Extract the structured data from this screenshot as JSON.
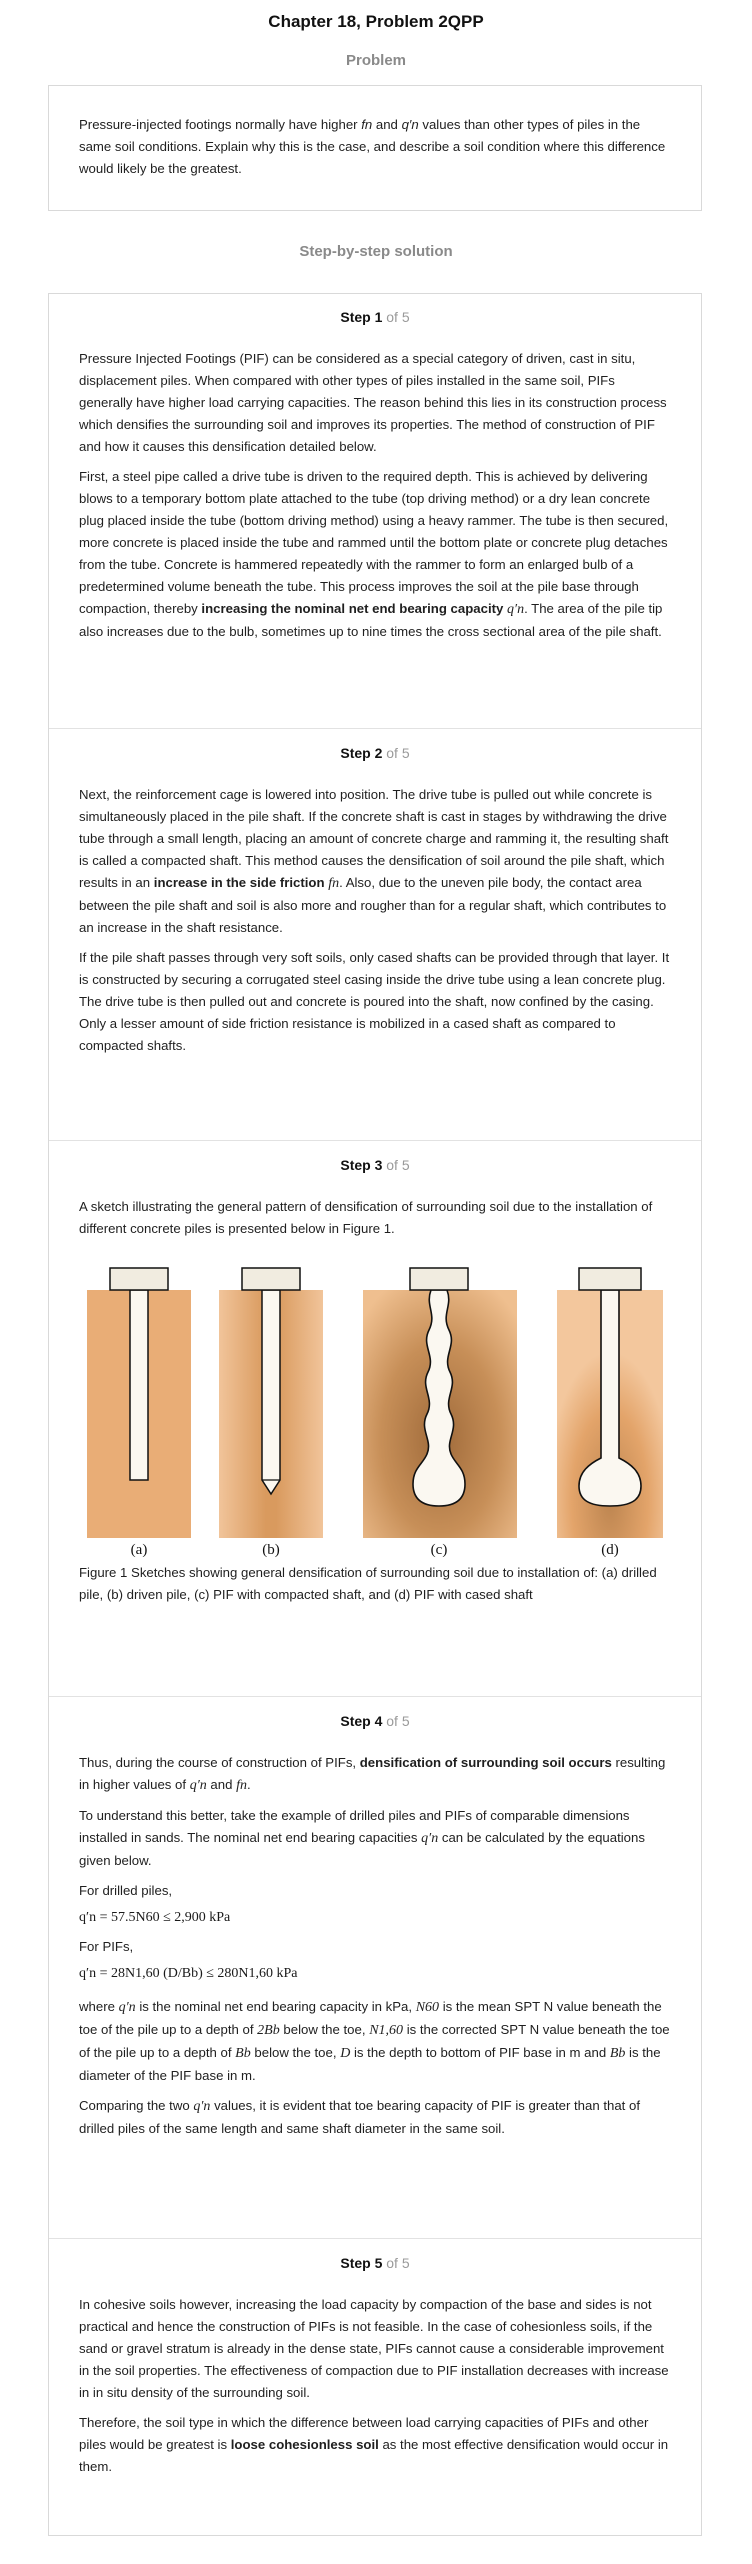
{
  "header": {
    "title": "Chapter 18, Problem 2QPP"
  },
  "problem": {
    "heading": "Problem",
    "text_before_fn": "Pressure-injected footings normally have higher ",
    "fn": "fn",
    "text_and": " and ",
    "qn": "q′n",
    "text_after_qn": " values than other types of piles in the same soil conditions. Explain why this is the case, and describe a soil condition where this difference would likely be the greatest."
  },
  "solution": {
    "heading": "Step-by-step solution"
  },
  "steps": [
    {
      "label": "Step 1",
      "of": " of 5",
      "p1": "Pressure Injected Footings (PIF) can be considered as a special category of driven, cast in situ, displacement piles. When compared with other types of piles installed in the same soil, PIFs generally have higher load carrying capacities. The reason behind this lies in its construction process which densifies the surrounding soil and improves its properties. The method of construction of PIF and how it causes this densification detailed below.",
      "p2_a": "First, a steel pipe called a drive tube is driven to the required depth. This is achieved by delivering blows to a temporary bottom plate attached to the tube (top driving method) or a dry lean concrete plug placed inside the tube (bottom driving method) using a heavy rammer. The tube is then secured, more concrete is placed inside the tube and rammed until the bottom plate or concrete plug detaches from the tube. Concrete is hammered repeatedly with the rammer to form an enlarged bulb of a predetermined volume beneath the tube. This process improves the soil at the pile base through compaction, thereby ",
      "p2_bold": "increasing the nominal net end bearing capacity",
      "p2_sym": "q′n",
      "p2_b": ". The area of the pile tip also increases due to the bulb, sometimes up to nine times the cross sectional area of the pile shaft."
    },
    {
      "label": "Step 2",
      "of": " of 5",
      "p1_a": "Next, the reinforcement cage is lowered into position. The drive tube is pulled out while concrete is simultaneously placed in the pile shaft. If the concrete shaft is cast in stages by withdrawing the drive tube through a small length, placing an amount of concrete charge and ramming it, the resulting shaft is called a compacted shaft. This method causes the densification of soil around the pile shaft, which results in an ",
      "p1_bold": "increase in the side friction",
      "p1_sym": "fn",
      "p1_b": ". Also, due to the uneven pile body, the contact area between the pile shaft and soil is also more and rougher than for a regular shaft, which contributes to an increase in the shaft resistance.",
      "p2": "If the pile shaft passes through very soft soils, only cased shafts can be provided through that layer. It is constructed by securing a corrugated steel casing inside the drive tube using a lean concrete plug. The drive tube is then pulled out and concrete is poured into the shaft, now confined by the casing. Only a lesser amount of side friction resistance is mobilized in a cased shaft as compared to compacted shafts."
    },
    {
      "label": "Step 3",
      "of": " of 5",
      "p1": "A sketch illustrating the general pattern of densification of surrounding soil due to the installation of different concrete piles is presented below in Figure 1.",
      "fig_labels": [
        "(a)",
        "(b)",
        "(c)",
        "(d)"
      ],
      "caption": "Figure 1 Sketches showing general densification of surrounding soil due to installation of: (a) drilled pile, (b) driven pile, (c) PIF with compacted shaft, and (d) PIF with cased shaft"
    },
    {
      "label": "Step 4",
      "of": " of 5",
      "p1_a": "Thus, during the course of construction of PIFs, ",
      "p1_bold": "densification of surrounding soil occurs",
      "p1_b": " resulting in higher values of ",
      "p1_sym1": "q′n",
      "p1_and": " and ",
      "p1_sym2": "fn",
      "p1_end": ".",
      "p2_a": "To understand this better, take the example of drilled piles and PIFs of comparable dimensions installed in sands. The nominal net end bearing capacities ",
      "p2_sym": "q′n",
      "p2_b": " can be calculated by the equations given below.",
      "drilled_label": "For drilled piles,",
      "eq1": "q′n = 57.5N60 ≤ 2,900 kPa",
      "pif_label": "For PIFs,",
      "eq2": "q′n = 28N1,60 (D/Bb) ≤ 280N1,60 kPa",
      "where_1": "where ",
      "where_s1": "q′n",
      "where_2": " is the nominal net end bearing capacity in kPa, ",
      "where_s2": "N60",
      "where_3": " is the mean SPT N value beneath the toe of the pile up to a depth of ",
      "where_s3": "2Bb",
      "where_4": " below the toe, ",
      "where_s4": "N1,60",
      "where_5": " is the corrected SPT N value beneath the toe of the pile up to a depth of ",
      "where_s5": "Bb",
      "where_6": " below the toe, ",
      "where_s6": "D",
      "where_7": " is the depth to bottom of PIF base in m and ",
      "where_s7": "Bb",
      "where_8": " is the diameter of the PIF base in m.",
      "cmp_a": "Comparing the two ",
      "cmp_sym": "q′n",
      "cmp_b": " values, it is evident that toe bearing capacity of PIF is greater than that of drilled piles of the same length and same shaft diameter in the same soil."
    },
    {
      "label": "Step 5",
      "of": " of 5",
      "p1": "In cohesive soils however, increasing the load capacity by compaction of the base and sides is not practical and hence the construction of PIFs is not feasible. In the case of cohesionless soils, if the sand or gravel stratum is already in the dense state, PIFs cannot cause a considerable improvement in the soil properties. The effectiveness of compaction due to PIF installation decreases with increase in in situ density of the surrounding soil.",
      "p2_a": "Therefore, the soil type in which the difference between load carrying capacities of PIFs and other piles would be greatest is ",
      "p2_bold": "loose cohesionless soil",
      "p2_b": " as the most effective densification would occur in them."
    }
  ],
  "colors": {
    "accent_gray": "#8a8a8a",
    "soil": "#e7a970",
    "soil_dark": "#c98a4c",
    "cap": "#f1ece0"
  }
}
